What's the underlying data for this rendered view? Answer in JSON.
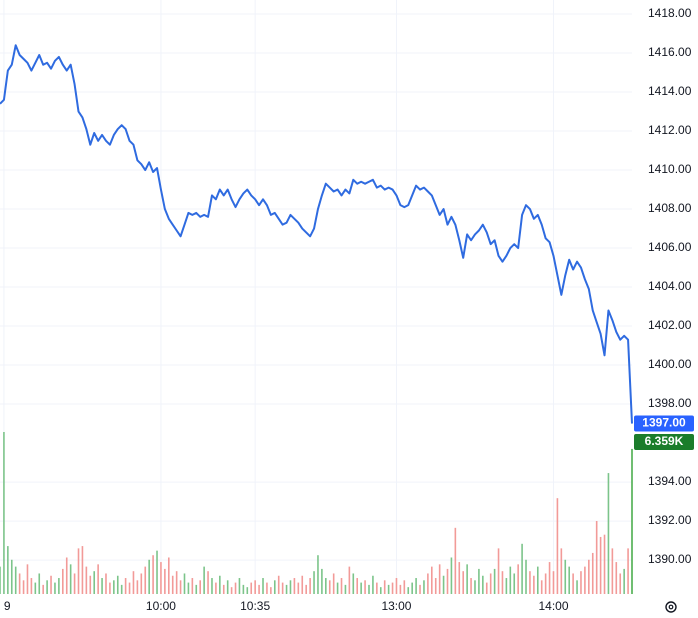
{
  "chart_data": {
    "type": "line",
    "categories": [
      null,
      "9",
      null,
      null,
      null,
      null,
      null,
      null,
      null,
      null,
      null,
      null,
      null,
      null,
      null,
      null,
      null,
      null,
      null,
      null,
      null,
      null,
      null,
      null,
      null,
      null,
      null,
      null,
      null,
      null,
      null,
      null,
      null,
      null,
      null,
      null,
      null,
      null,
      null,
      null,
      null,
      "10:00",
      null,
      null,
      null,
      null,
      null,
      null,
      null,
      null,
      null,
      null,
      null,
      null,
      null,
      null,
      null,
      null,
      null,
      null,
      null,
      null,
      null,
      null,
      null,
      "10:35",
      null,
      null,
      null,
      null,
      null,
      null,
      null,
      null,
      null,
      null,
      null,
      null,
      null,
      null,
      null,
      null,
      null,
      null,
      null,
      null,
      null,
      null,
      null,
      null,
      null,
      null,
      null,
      null,
      null,
      null,
      null,
      null,
      null,
      null,
      null,
      "13:00",
      null,
      null,
      null,
      null,
      null,
      null,
      null,
      null,
      null,
      null,
      null,
      null,
      null,
      null,
      null,
      null,
      null,
      null,
      null,
      null,
      null,
      null,
      null,
      null,
      null,
      null,
      null,
      null,
      null,
      null,
      null,
      null,
      null,
      null,
      null,
      null,
      null,
      null,
      null,
      "14:00",
      null,
      null,
      null,
      null,
      null,
      null,
      null,
      null,
      null,
      null,
      null,
      null,
      null,
      null,
      null,
      null,
      null,
      null,
      null,
      null
    ],
    "series": [
      {
        "type": "line",
        "color": "#2f6be0",
        "last_label": "1397.00",
        "label_color": "#2962ff",
        "values": [
          1413.4,
          1413.6,
          1415.1,
          1415.4,
          1416.4,
          1415.9,
          1415.7,
          1415.5,
          1415.1,
          1415.5,
          1415.9,
          1415.4,
          1415.5,
          1415.2,
          1415.6,
          1415.8,
          1415.4,
          1415.1,
          1415.4,
          1414.4,
          1413.0,
          1412.7,
          1412.1,
          1411.3,
          1411.9,
          1411.5,
          1411.8,
          1411.5,
          1411.3,
          1411.8,
          1412.1,
          1412.3,
          1412.1,
          1411.5,
          1411.3,
          1410.5,
          1410.3,
          1410.0,
          1410.4,
          1409.9,
          1410.1,
          1409.0,
          1408.0,
          1407.5,
          1407.2,
          1406.9,
          1406.6,
          1407.2,
          1407.8,
          1407.7,
          1407.8,
          1407.6,
          1407.7,
          1407.6,
          1408.7,
          1408.5,
          1409.0,
          1408.7,
          1409.0,
          1408.5,
          1408.1,
          1408.5,
          1408.8,
          1409.0,
          1408.7,
          1408.5,
          1408.2,
          1408.5,
          1408.2,
          1407.7,
          1407.8,
          1407.5,
          1407.2,
          1407.3,
          1407.7,
          1407.5,
          1407.3,
          1407.0,
          1406.8,
          1406.6,
          1407.0,
          1408.0,
          1408.7,
          1409.3,
          1409.1,
          1408.9,
          1409.0,
          1408.7,
          1409.0,
          1408.8,
          1409.5,
          1409.3,
          1409.4,
          1409.3,
          1409.4,
          1409.5,
          1409.1,
          1409.2,
          1409.0,
          1409.1,
          1409.0,
          1408.7,
          1408.2,
          1408.1,
          1408.2,
          1408.7,
          1409.2,
          1409.0,
          1409.1,
          1408.9,
          1408.7,
          1408.2,
          1407.7,
          1408.0,
          1407.2,
          1407.6,
          1407.2,
          1406.4,
          1405.5,
          1406.7,
          1406.4,
          1406.7,
          1406.9,
          1407.2,
          1406.8,
          1406.2,
          1406.4,
          1405.6,
          1405.3,
          1405.6,
          1406.0,
          1406.2,
          1406.0,
          1407.7,
          1408.2,
          1408.0,
          1407.5,
          1407.7,
          1407.2,
          1406.5,
          1406.3,
          1405.6,
          1404.6,
          1403.6,
          1404.6,
          1405.4,
          1404.9,
          1405.3,
          1405.0,
          1404.4,
          1403.9,
          1402.8,
          1402.2,
          1401.6,
          1400.5,
          1402.8,
          1402.3,
          1401.7,
          1401.3,
          1401.5,
          1401.3,
          1397.0
        ]
      },
      {
        "type": "volume",
        "up_color": "#7cc48a",
        "down_color": "#f29a98",
        "last_color": "#4caf50",
        "label_color": "#1b7d2b",
        "last_label": "6.359K",
        "values": [
          1200,
          7100,
          2100,
          1500,
          1200,
          900,
          600,
          1300,
          700,
          500,
          900,
          400,
          600,
          800,
          500,
          700,
          1100,
          1600,
          1300,
          900,
          2000,
          2100,
          1200,
          800,
          1000,
          1300,
          700,
          900,
          500,
          600,
          800,
          400,
          700,
          500,
          1000,
          600,
          900,
          1200,
          1500,
          1700,
          1900,
          1400,
          1100,
          1600,
          800,
          1000,
          600,
          900,
          500,
          700,
          400,
          600,
          1200,
          1000,
          700,
          500,
          800,
          400,
          600,
          300,
          500,
          700,
          400,
          300,
          500,
          600,
          400,
          700,
          500,
          300,
          600,
          800,
          500,
          400,
          600,
          700,
          500,
          800,
          400,
          700,
          1000,
          1700,
          1100,
          700,
          600,
          900,
          500,
          700,
          400,
          1200,
          900,
          700,
          500,
          600,
          400,
          800,
          500,
          300,
          600,
          400,
          500,
          700,
          400,
          600,
          300,
          500,
          700,
          400,
          600,
          900,
          1200,
          700,
          1300,
          800,
          1100,
          1600,
          2900,
          1400,
          1000,
          1300,
          700,
          600,
          1100,
          800,
          500,
          900,
          1100,
          2000,
          1000,
          700,
          1200,
          900,
          1300,
          2200,
          1500,
          1000,
          800,
          1200,
          600,
          900,
          1400,
          1000,
          4200,
          2000,
          1500,
          1200,
          900,
          600,
          1000,
          1200,
          1500,
          1800,
          3200,
          2500,
          2600,
          5300,
          2000,
          1400,
          900,
          1100,
          2000,
          6359
        ]
      }
    ],
    "ylim": [
      1388.26,
      1418.72
    ],
    "yticks": [
      {
        "value": 1418,
        "label": "1418.00"
      },
      {
        "value": 1416,
        "label": "1416.00"
      },
      {
        "value": 1414,
        "label": "1414.00"
      },
      {
        "value": 1412,
        "label": "1412.00"
      },
      {
        "value": 1410,
        "label": "1410.00"
      },
      {
        "value": 1408,
        "label": "1408.00"
      },
      {
        "value": 1406,
        "label": "1406.00"
      },
      {
        "value": 1404,
        "label": "1404.00"
      },
      {
        "value": 1402,
        "label": "1402.00"
      },
      {
        "value": 1400,
        "label": "1400.00"
      },
      {
        "value": 1398,
        "label": "1398.00"
      },
      {
        "value": 1394,
        "label": "1394.00"
      },
      {
        "value": 1392,
        "label": "1392.00"
      },
      {
        "value": 1390,
        "label": "1390.00"
      }
    ],
    "grid": true
  }
}
